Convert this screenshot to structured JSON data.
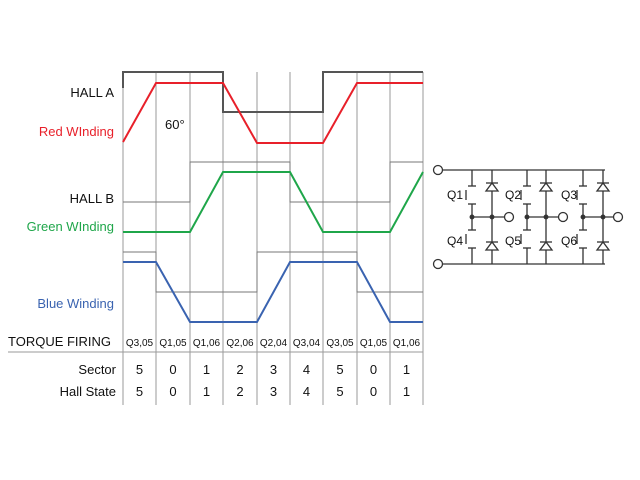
{
  "signals": {
    "hall_a": "HALL A",
    "red_winding": "Red WInding",
    "angle": "60°",
    "hall_b": "HALL B",
    "green_winding": "Green WInding",
    "blue_winding": "Blue Winding"
  },
  "table": {
    "torque_label": "TORQUE FIRING",
    "sector_label": "Sector",
    "hall_state_label": "Hall State",
    "torque": [
      "Q3,05",
      "Q1,05",
      "Q1,06",
      "Q2,06",
      "Q2,04",
      "Q3,04",
      "Q3,05",
      "Q1,05",
      "Q1,06"
    ],
    "sector": [
      "5",
      "0",
      "1",
      "2",
      "3",
      "4",
      "5",
      "0",
      "1"
    ],
    "hall_state": [
      "5",
      "0",
      "1",
      "2",
      "3",
      "4",
      "5",
      "0",
      "1"
    ]
  },
  "bridge": {
    "switches": [
      "Q1",
      "Q2",
      "Q3",
      "Q4",
      "Q5",
      "Q6"
    ]
  },
  "colors": {
    "hall": "#555555",
    "red": "#e8202a",
    "green": "#1fa64a",
    "blue": "#3a63b0",
    "grid": "#9a9a9a",
    "text": "#111111"
  }
}
